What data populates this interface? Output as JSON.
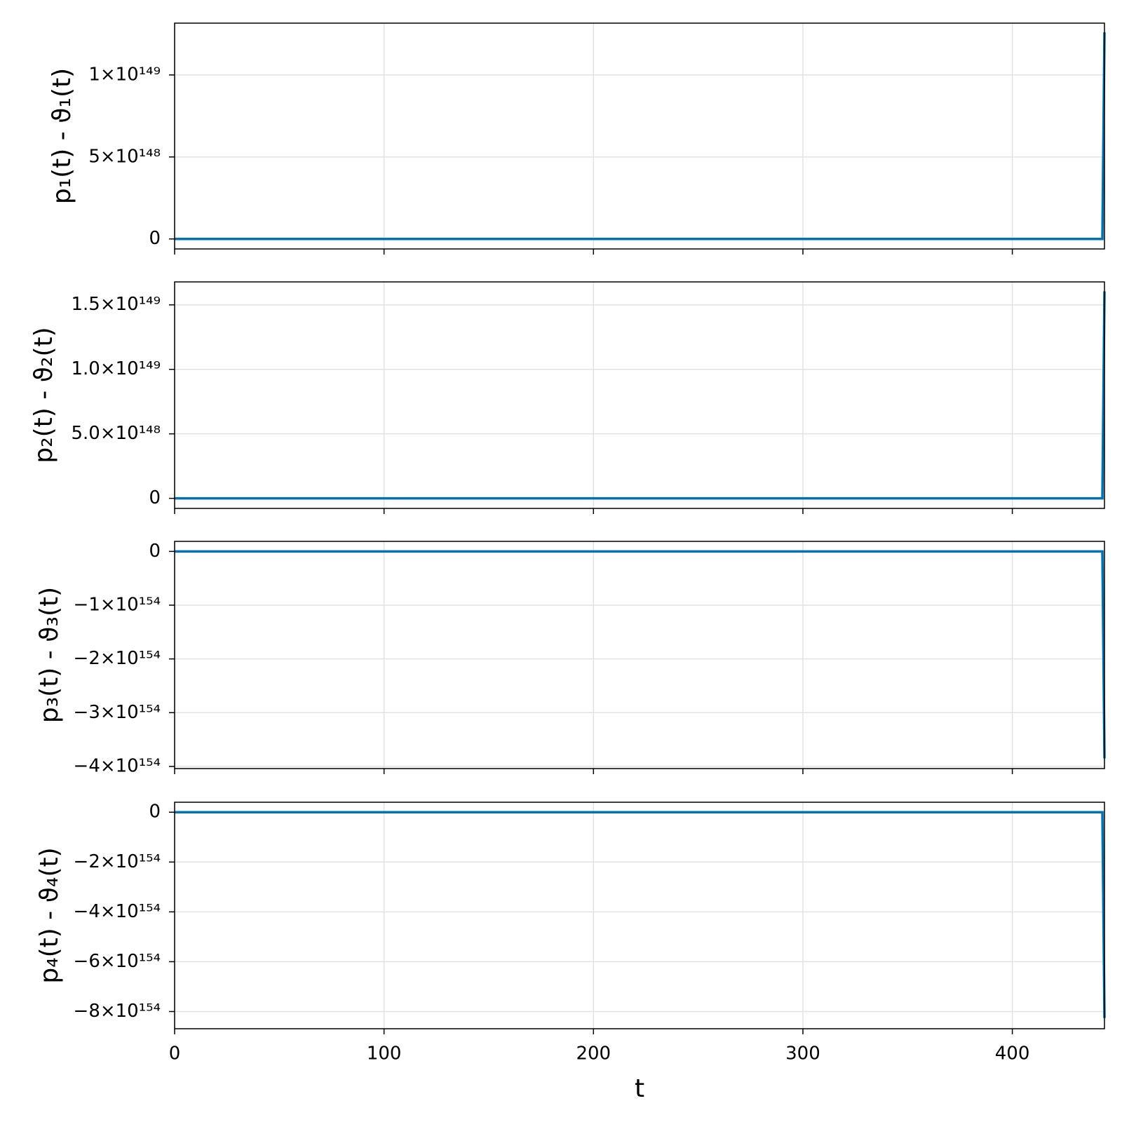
{
  "chart_data": [
    {
      "type": "line",
      "ylabel": "p₁(t) - ϑ₁(t)",
      "x": [
        0,
        443,
        444
      ],
      "series": [
        {
          "color": "#0072b2",
          "values": [
            0,
            0,
            1.26e+149
          ]
        }
      ],
      "xlim": [
        0,
        444
      ],
      "xticks": [
        0,
        100,
        200,
        300,
        400
      ],
      "ylim": [
        -6.1e+147,
        1.316e+149
      ],
      "yticks": [
        0,
        {
          "value": 5e+148,
          "label": "5×10¹⁴⁸"
        },
        {
          "value": 1e+149,
          "label": "1×10¹⁴⁹"
        }
      ],
      "grid": true
    },
    {
      "type": "line",
      "ylabel": "p₂(t) - ϑ₂(t)",
      "x": [
        0,
        443,
        444
      ],
      "series": [
        {
          "color": "#0072b2",
          "values": [
            0,
            0,
            1.605e+149
          ]
        }
      ],
      "xlim": [
        0,
        444
      ],
      "xticks": [
        0,
        100,
        200,
        300,
        400
      ],
      "ylim": [
        -7.8e+147,
        1.678e+149
      ],
      "yticks": [
        0,
        {
          "value": 5e+148,
          "label": "5.0×10¹⁴⁸"
        },
        {
          "value": 1e+149,
          "label": "1.0×10¹⁴⁹"
        },
        {
          "value": 1.5e+149,
          "label": "1.5×10¹⁴⁹"
        }
      ],
      "grid": true
    },
    {
      "type": "line",
      "ylabel": "p₃(t) - ϑ₃(t)",
      "x": [
        0,
        443,
        444
      ],
      "series": [
        {
          "color": "#0072b2",
          "values": [
            0,
            0,
            -3.85e+154
          ]
        }
      ],
      "xlim": [
        0,
        444
      ],
      "xticks": [
        0,
        100,
        200,
        300,
        400
      ],
      "ylim": [
        -4.04e+154,
        1.87e+153
      ],
      "yticks": [
        0,
        {
          "value": -1e+154,
          "label": "−1×10¹⁵⁴"
        },
        {
          "value": -2e+154,
          "label": "−2×10¹⁵⁴"
        },
        {
          "value": -3e+154,
          "label": "−3×10¹⁵⁴"
        },
        {
          "value": -4e+154,
          "label": "−4×10¹⁵⁴"
        }
      ],
      "grid": true
    },
    {
      "type": "line",
      "ylabel": "p₄(t) - ϑ₄(t)",
      "xlabel": "t",
      "x": [
        0,
        443,
        444
      ],
      "series": [
        {
          "color": "#0072b2",
          "values": [
            0,
            0,
            -8.26e+154
          ]
        }
      ],
      "xlim": [
        0,
        444
      ],
      "xticks": [
        0,
        100,
        200,
        300,
        400
      ],
      "ylim": [
        -8.69e+154,
        4e+153
      ],
      "yticks": [
        0,
        {
          "value": -2e+154,
          "label": "−2×10¹⁵⁴"
        },
        {
          "value": -4e+154,
          "label": "−4×10¹⁵⁴"
        },
        {
          "value": -6e+154,
          "label": "−6×10¹⁵⁴"
        },
        {
          "value": -8e+154,
          "label": "−8×10¹⁵⁴"
        }
      ],
      "grid": true
    }
  ]
}
